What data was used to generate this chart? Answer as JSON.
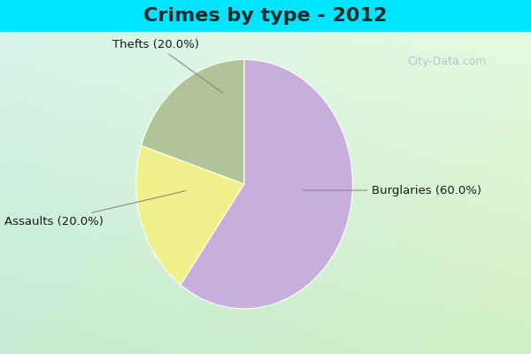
{
  "title": "Crimes by type - 2012",
  "slices": [
    {
      "label": "Burglaries",
      "pct": 60.0,
      "color": "#c8aedd"
    },
    {
      "label": "Thefts",
      "pct": 20.0,
      "color": "#f0f08a"
    },
    {
      "label": "Assaults",
      "pct": 20.0,
      "color": "#b0c498"
    }
  ],
  "bg_cyan": "#00e5ff",
  "bg_topleft": "#b8eee8",
  "bg_bottomright": "#cceedd",
  "title_fontsize": 16,
  "label_fontsize": 9.5,
  "watermark": "City-Data.com",
  "title_color": "#1a2a2a",
  "label_color": "#1a1a1a",
  "watermark_color": "#99bbc8",
  "startangle": 90,
  "annotation_color": "#888888"
}
